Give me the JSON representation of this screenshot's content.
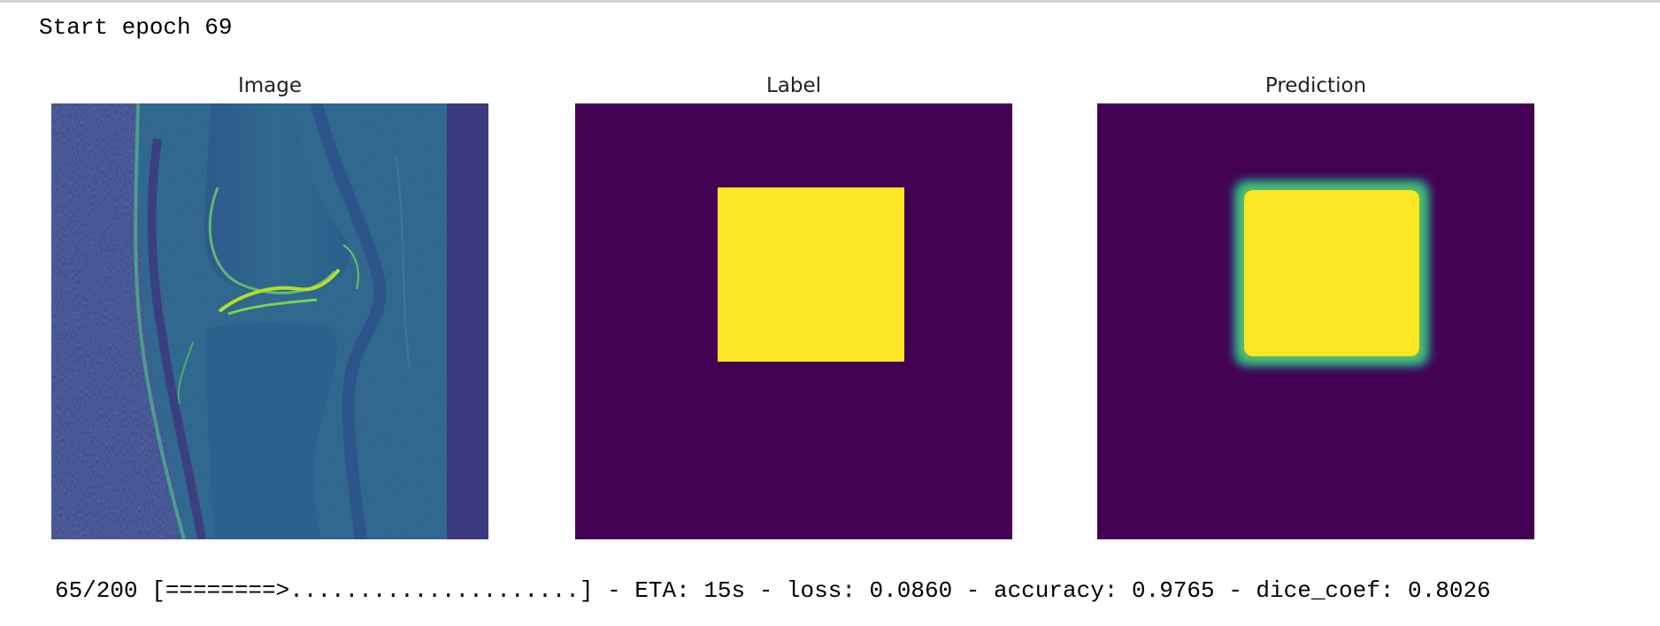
{
  "output": {
    "epoch_line": "Start epoch 69",
    "panels": [
      {
        "title": "Image"
      },
      {
        "title": "Label"
      },
      {
        "title": "Prediction"
      }
    ],
    "progress_line": "65/200 [========>.....................] - ETA: 15s - loss: 0.0860 - accuracy: 0.9765 - dice_coef: 0.8026"
  },
  "colors": {
    "viridis_dark": "#440154",
    "viridis_yellow": "#fde725",
    "viridis_teal": "#21918c",
    "viridis_blue": "#3b528b"
  }
}
